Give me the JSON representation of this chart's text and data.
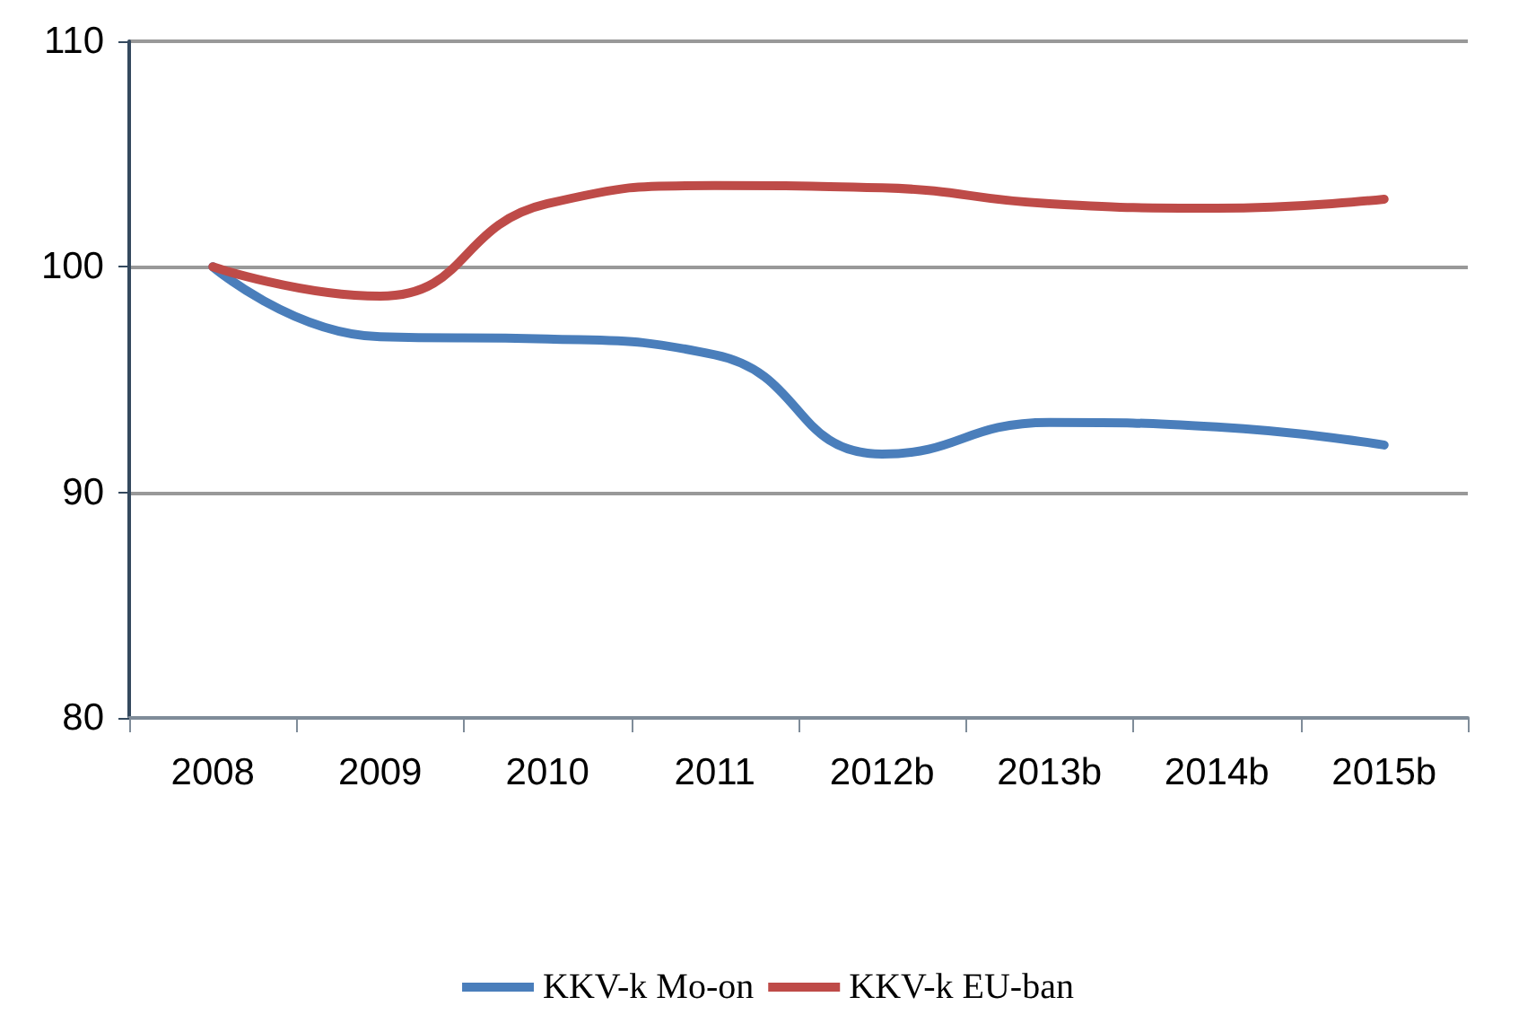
{
  "chart_data": {
    "type": "line",
    "categories": [
      "2008",
      "2009",
      "2010",
      "2011",
      "2012b",
      "2013b",
      "2014b",
      "2015b"
    ],
    "series": [
      {
        "name": "KKV-k Mo-on",
        "color": "#4a7ebb",
        "values": [
          100,
          96.9,
          96.8,
          96.1,
          91.7,
          93.1,
          92.9,
          92.1
        ]
      },
      {
        "name": "KKV-k EU-ban",
        "color": "#be4b48",
        "values": [
          100,
          98.7,
          102.8,
          103.6,
          103.5,
          102.8,
          102.6,
          103.0
        ]
      }
    ],
    "ylim": [
      80,
      110
    ],
    "yticks": [
      80,
      90,
      100,
      110
    ],
    "grid": "y",
    "legend": "bottom",
    "marker": "none",
    "line_style": "solid"
  }
}
